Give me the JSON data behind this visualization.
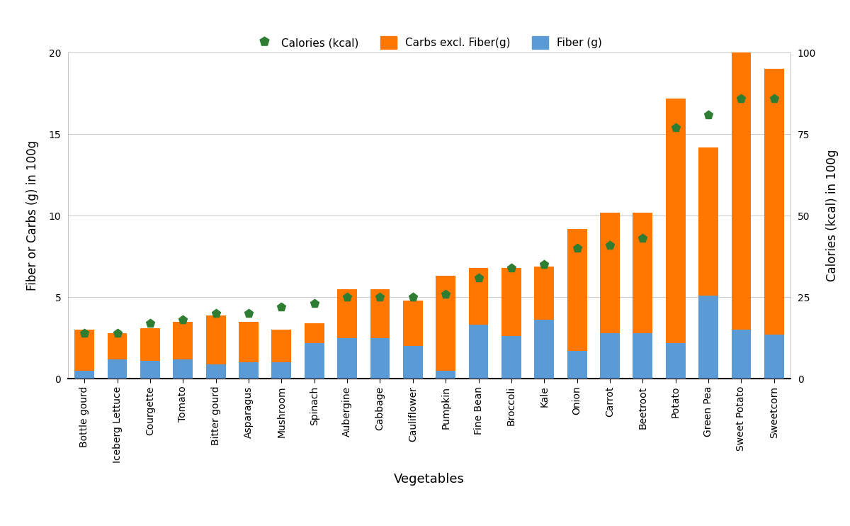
{
  "vegetables": [
    "Bottle gourd",
    "Iceberg Lettuce",
    "Courgette",
    "Tomato",
    "Bitter gourd",
    "Asparagus",
    "Mushroom",
    "Spinach",
    "Aubergine",
    "Cabbage",
    "Cauliflower",
    "Pumpkin",
    "Fine Bean",
    "Broccoli",
    "Kale",
    "Onion",
    "Carrot",
    "Beetroot",
    "Potato",
    "Green Pea",
    "Sweet Potato",
    "Sweetcorn"
  ],
  "fiber": [
    0.5,
    1.2,
    1.1,
    1.2,
    0.9,
    1.0,
    1.0,
    2.2,
    2.5,
    2.5,
    2.0,
    0.5,
    3.3,
    2.6,
    3.6,
    1.7,
    2.8,
    2.8,
    2.2,
    5.1,
    3.0,
    2.7
  ],
  "carbs_excl_fiber": [
    2.5,
    1.6,
    2.0,
    2.3,
    3.0,
    2.5,
    2.0,
    1.2,
    3.0,
    3.0,
    2.8,
    5.8,
    3.5,
    4.2,
    3.3,
    7.5,
    7.4,
    7.4,
    15.0,
    9.1,
    17.0,
    16.3
  ],
  "calories": [
    14,
    14,
    17,
    18,
    20,
    20,
    22,
    23,
    25,
    25,
    25,
    26,
    31,
    34,
    35,
    40,
    41,
    43,
    77,
    81,
    86,
    86
  ],
  "bar_color_carbs": "#FF7700",
  "bar_color_fiber": "#5B9BD5",
  "dot_color_calories": "#2E7D32",
  "ylabel_left": "Fiber or Carbs (g) in 100g",
  "ylabel_right": "Calories (kcal) in 100g",
  "xlabel": "Vegetables",
  "ylim_left": [
    0,
    20
  ],
  "ylim_right": [
    0,
    100
  ],
  "yticks_left": [
    0,
    5,
    10,
    15,
    20
  ],
  "yticks_right": [
    0,
    25,
    50,
    75,
    100
  ],
  "legend_calories": "Calories (kcal)",
  "legend_carbs": "Carbs excl. Fiber(g)",
  "legend_fiber": "Fiber (g)",
  "bg_color": "#FFFFFF",
  "grid_color": "#CCCCCC"
}
